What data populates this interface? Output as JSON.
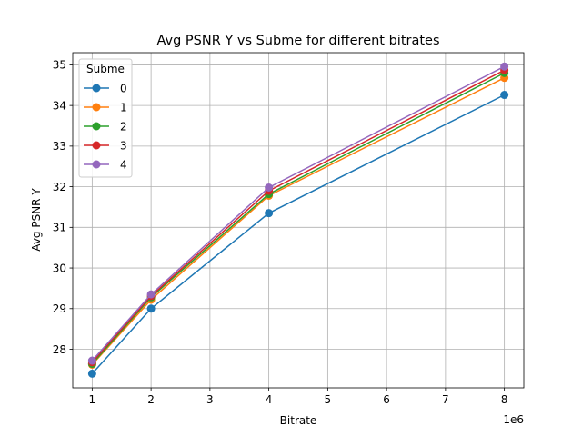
{
  "chart_data": {
    "type": "line",
    "title": "Avg PSNR Y vs Subme for different bitrates",
    "xlabel": "Bitrate",
    "ylabel": "Avg PSNR Y",
    "x_offset_label": "1e6",
    "x_scale": 1000000,
    "x": [
      1000000,
      2000000,
      4000000,
      8000000
    ],
    "xlim": [
      670000,
      8330000
    ],
    "ylim": [
      27.05,
      35.3
    ],
    "xticks": [
      1,
      2,
      3,
      4,
      5,
      6,
      7,
      8
    ],
    "yticks": [
      28,
      29,
      30,
      31,
      32,
      33,
      34,
      35
    ],
    "grid": true,
    "legend": {
      "title": "Subme",
      "placement": "upper-left"
    },
    "series": [
      {
        "name": "0",
        "color": "#1f77b4",
        "values": [
          27.4,
          29.0,
          31.35,
          34.26
        ]
      },
      {
        "name": "1",
        "color": "#ff7f0e",
        "values": [
          27.62,
          29.22,
          31.78,
          34.68
        ]
      },
      {
        "name": "2",
        "color": "#2ca02c",
        "values": [
          27.64,
          29.28,
          31.82,
          34.8
        ]
      },
      {
        "name": "3",
        "color": "#d62728",
        "values": [
          27.68,
          29.31,
          31.9,
          34.87
        ]
      },
      {
        "name": "4",
        "color": "#9467bd",
        "values": [
          27.72,
          29.35,
          31.98,
          34.96
        ]
      }
    ]
  }
}
